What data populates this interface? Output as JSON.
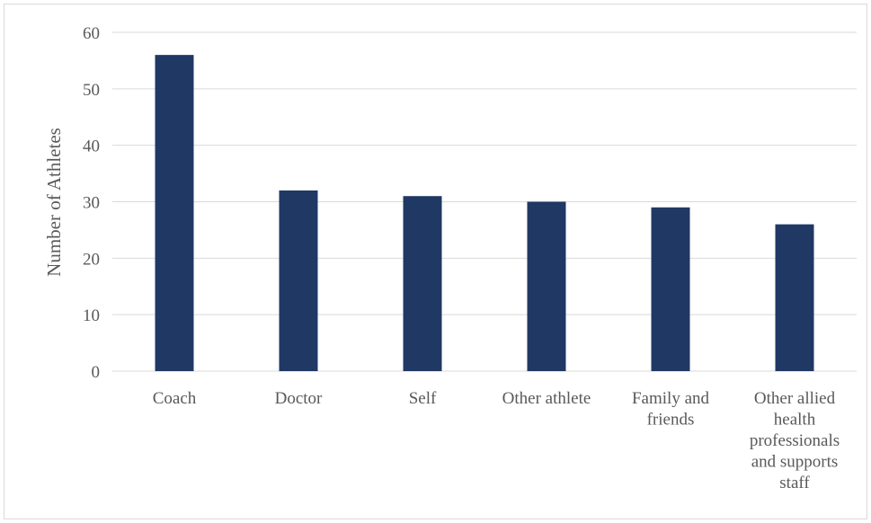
{
  "chart_data": {
    "type": "bar",
    "title": "",
    "xlabel": "",
    "ylabel": "Number of Athletes",
    "ylim": [
      0,
      60
    ],
    "yticks": [
      0,
      10,
      20,
      30,
      40,
      50,
      60
    ],
    "grid": true,
    "legend": "none",
    "categories": [
      [
        "Coach"
      ],
      [
        "Doctor"
      ],
      [
        "Self"
      ],
      [
        "Other athlete"
      ],
      [
        "Family and",
        "friends"
      ],
      [
        "Other allied",
        "health",
        "professionals",
        "and supports",
        "staff"
      ]
    ],
    "values": [
      56,
      32,
      31,
      30,
      29,
      26
    ],
    "colors": {
      "bar": "#203864",
      "grid": "#d9d9d9",
      "text": "#595959"
    }
  }
}
